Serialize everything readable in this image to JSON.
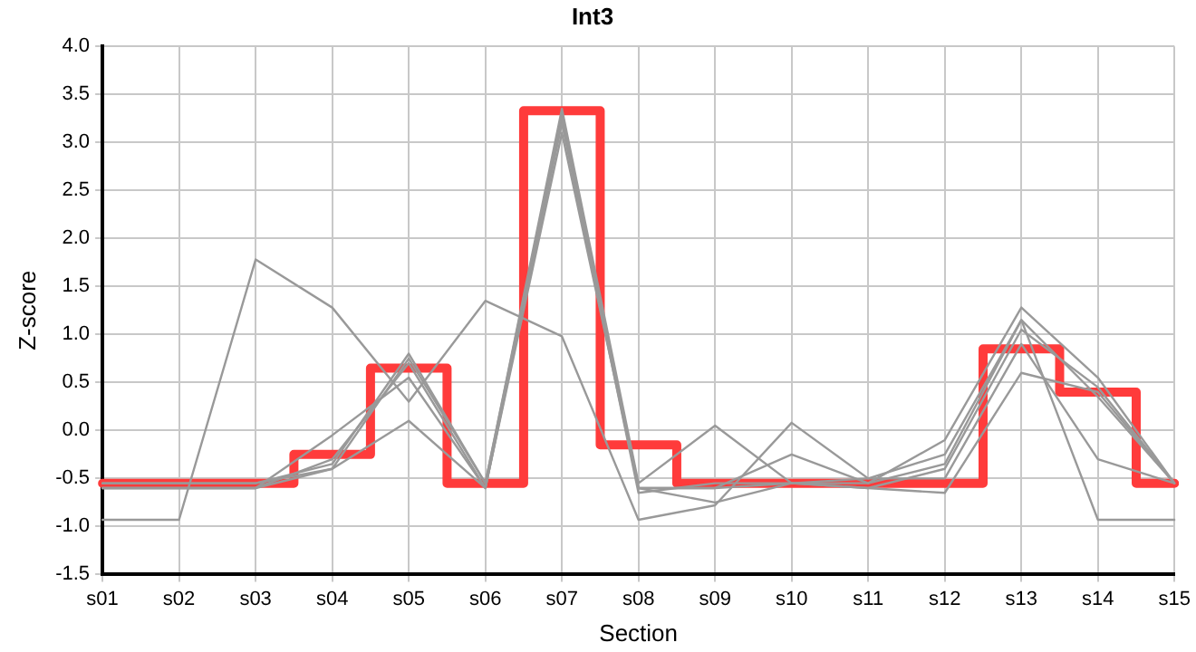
{
  "chart_data": {
    "type": "line",
    "title": "Int3",
    "xlabel": "Section",
    "ylabel": "Z-score",
    "categories": [
      "s01",
      "s02",
      "s03",
      "s04",
      "s05",
      "s06",
      "s07",
      "s08",
      "s09",
      "s10",
      "s11",
      "s12",
      "s13",
      "s14",
      "s15"
    ],
    "ylim": [
      -1.5,
      4.0
    ],
    "yticks": [
      {
        "value": -1.5,
        "label": "-1.5"
      },
      {
        "value": -1,
        "label": "-1.0"
      },
      {
        "value": -0.5,
        "label": "-0.5"
      },
      {
        "value": 0,
        "label": "0.0"
      },
      {
        "value": 0.5,
        "label": "0.5"
      },
      {
        "value": 1,
        "label": "1.0"
      },
      {
        "value": 1.5,
        "label": "1.5"
      },
      {
        "value": 2,
        "label": "2.0"
      },
      {
        "value": 2.5,
        "label": "2.5"
      },
      {
        "value": 3,
        "label": "3.0"
      },
      {
        "value": 3.5,
        "label": "3.5"
      },
      {
        "value": 4,
        "label": "4.0"
      }
    ],
    "grid": true,
    "legend": false,
    "marker": "none",
    "line_style": "solid",
    "series": [
      {
        "color": "#999999",
        "values": [
          -0.93,
          -0.93,
          1.78,
          1.28,
          0.3,
          1.35,
          0.98,
          -0.93,
          -0.78,
          0.08,
          -0.5,
          -0.25,
          1.15,
          -0.93,
          -0.93
        ]
      },
      {
        "color": "#999999",
        "values": [
          -0.55,
          -0.55,
          -0.55,
          -0.35,
          0.8,
          -0.55,
          3.35,
          -0.55,
          0.05,
          -0.55,
          -0.55,
          -0.1,
          1.28,
          0.55,
          -0.55
        ]
      },
      {
        "color": "#999999",
        "values": [
          -0.55,
          -0.55,
          -0.55,
          -0.4,
          0.75,
          -0.55,
          3.3,
          -0.6,
          -0.6,
          -0.25,
          -0.55,
          -0.35,
          1.15,
          0.35,
          -0.55
        ]
      },
      {
        "color": "#999999",
        "values": [
          -0.6,
          -0.6,
          -0.6,
          -0.3,
          0.7,
          -0.6,
          3.2,
          -0.65,
          -0.55,
          -0.55,
          -0.6,
          -0.4,
          1.05,
          0.45,
          -0.55
        ]
      },
      {
        "color": "#999999",
        "values": [
          -0.6,
          -0.6,
          -0.6,
          -0.05,
          0.55,
          -0.6,
          3.25,
          -0.6,
          -0.6,
          -0.55,
          -0.5,
          -0.5,
          0.9,
          -0.3,
          -0.55
        ]
      },
      {
        "color": "#999999",
        "values": [
          -0.6,
          -0.6,
          -0.6,
          -0.4,
          0.1,
          -0.6,
          3.1,
          -0.6,
          -0.75,
          -0.55,
          -0.6,
          -0.65,
          0.6,
          0.4,
          -0.55
        ]
      },
      {
        "type": "step",
        "color": "#ff3b3b",
        "values": [
          -0.55,
          -0.55,
          -0.55,
          -0.25,
          0.65,
          -0.55,
          3.33,
          -0.15,
          -0.55,
          -0.55,
          -0.55,
          -0.55,
          0.85,
          0.4,
          -0.55
        ]
      }
    ]
  }
}
